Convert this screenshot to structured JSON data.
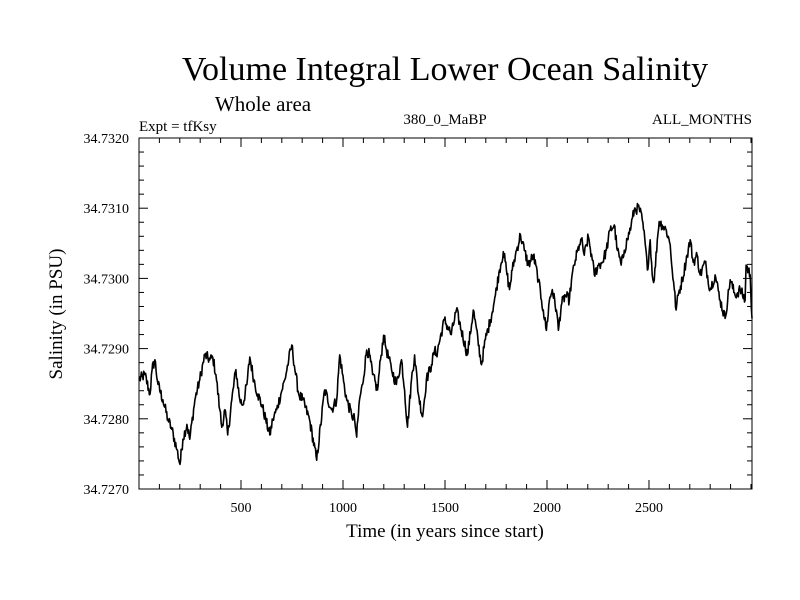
{
  "chart_data": {
    "type": "line",
    "title": "Volume Integral Lower Ocean Salinity",
    "subtitle": "Whole area",
    "annotations": {
      "left": "Expt = tfKsy",
      "center": "380_0_MaBP",
      "right": "ALL_MONTHS"
    },
    "xlabel": "Time (in years since start)",
    "ylabel": "Salinity (in PSU)",
    "xlim": [
      0,
      3005
    ],
    "ylim": [
      34.727,
      34.732
    ],
    "x_major_ticks": [
      500,
      1000,
      1500,
      2000,
      2500
    ],
    "x_tick_labels": [
      "500",
      "1000",
      "1500",
      "2000",
      "2500"
    ],
    "x_minor_step": 100,
    "y_major_ticks": [
      34.727,
      34.728,
      34.729,
      34.73,
      34.731,
      34.732
    ],
    "y_tick_labels": [
      "34.7270",
      "34.7280",
      "34.7290",
      "34.7300",
      "34.7310",
      "34.7320"
    ],
    "y_minor_step": 0.0002,
    "grid": false,
    "legend": "none",
    "series": [
      {
        "name": "Salinity",
        "color": "#000000",
        "x": [
          0,
          29,
          54,
          64,
          78,
          93,
          117,
          142,
          161,
          186,
          201,
          215,
          235,
          249,
          274,
          298,
          323,
          347,
          362,
          377,
          396,
          406,
          421,
          435,
          455,
          475,
          494,
          509,
          529,
          543,
          563,
          582,
          602,
          621,
          641,
          656,
          675,
          695,
          715,
          734,
          749,
          768,
          783,
          802,
          836,
          871,
          910,
          944,
          969,
          984,
          1003,
          1018,
          1042,
          1057,
          1067,
          1081,
          1096,
          1116,
          1130,
          1145,
          1169,
          1184,
          1199,
          1213,
          1238,
          1262,
          1287,
          1302,
          1316,
          1336,
          1351,
          1370,
          1390,
          1409,
          1434,
          1449,
          1458,
          1497,
          1531,
          1556,
          1610,
          1639,
          1679,
          1698,
          1723,
          1747,
          1767,
          1786,
          1801,
          1816,
          1830,
          1845,
          1870,
          1889,
          1909,
          1933,
          1958,
          1973,
          1982,
          1997,
          2012,
          2026,
          2046,
          2056,
          2070,
          2090,
          2110,
          2120,
          2139,
          2159,
          2169,
          2183,
          2203,
          2222,
          2232,
          2252,
          2271,
          2291,
          2310,
          2330,
          2345,
          2364,
          2379,
          2394,
          2413,
          2428,
          2452,
          2467,
          2482,
          2492,
          2506,
          2516,
          2526,
          2541,
          2550,
          2565,
          2585,
          2604,
          2614,
          2624,
          2633,
          2643,
          2663,
          2687,
          2702,
          2717,
          2736,
          2751,
          2775,
          2800,
          2824,
          2849,
          2873,
          2898,
          2922,
          2947,
          2971,
          2976,
          2996,
          3005
        ],
        "values": [
          34.72856,
          34.72863,
          34.72835,
          34.7287,
          34.72884,
          34.72849,
          34.72827,
          34.72799,
          34.72785,
          34.72756,
          34.72735,
          34.72771,
          34.72792,
          34.72771,
          34.72827,
          34.72856,
          34.72891,
          34.72884,
          34.72887,
          34.72863,
          34.72813,
          34.72788,
          34.72813,
          34.72777,
          34.72827,
          34.7287,
          34.72827,
          34.7282,
          34.72849,
          34.72888,
          34.72856,
          34.72835,
          34.7282,
          34.72799,
          34.72777,
          34.72799,
          34.72813,
          34.72835,
          34.72856,
          34.72884,
          34.72905,
          34.72863,
          34.72835,
          34.72827,
          34.72799,
          34.72741,
          34.72841,
          34.72813,
          34.72827,
          34.72891,
          34.72853,
          34.72827,
          34.72806,
          34.72799,
          34.72774,
          34.72827,
          34.72849,
          34.72898,
          34.72891,
          34.72863,
          34.72841,
          34.72884,
          34.72919,
          34.72898,
          34.7287,
          34.72849,
          34.72884,
          34.72841,
          34.72788,
          34.72856,
          34.72891,
          34.72834,
          34.72803,
          34.72856,
          34.72877,
          34.72898,
          34.72891,
          34.72941,
          34.7292,
          34.72955,
          34.72891,
          34.72955,
          34.72877,
          34.72913,
          34.72941,
          34.72976,
          34.73012,
          34.73038,
          34.73012,
          34.72984,
          34.73012,
          34.73033,
          34.73062,
          34.7304,
          34.73019,
          34.73033,
          34.72998,
          34.72969,
          34.72955,
          34.72926,
          34.72969,
          34.72984,
          34.72955,
          34.72926,
          34.72962,
          34.72976,
          34.72969,
          34.72998,
          34.73026,
          34.73048,
          34.73055,
          34.73033,
          34.73059,
          34.73026,
          34.73005,
          34.73019,
          34.73023,
          34.7304,
          34.73069,
          34.73076,
          34.7304,
          34.73019,
          34.7304,
          34.73055,
          34.73076,
          34.73098,
          34.731,
          34.73083,
          34.73048,
          34.73012,
          34.73055,
          34.73005,
          34.72998,
          34.73055,
          34.73081,
          34.73076,
          34.73069,
          34.73048,
          34.73012,
          34.72984,
          34.72955,
          34.72976,
          34.72998,
          34.73033,
          34.73055,
          34.73023,
          34.73033,
          34.73005,
          34.73023,
          34.72984,
          34.73005,
          34.72969,
          34.72943,
          34.72998,
          34.72976,
          34.72984,
          34.72969,
          34.73019,
          34.73005,
          34.72943
        ]
      }
    ]
  }
}
